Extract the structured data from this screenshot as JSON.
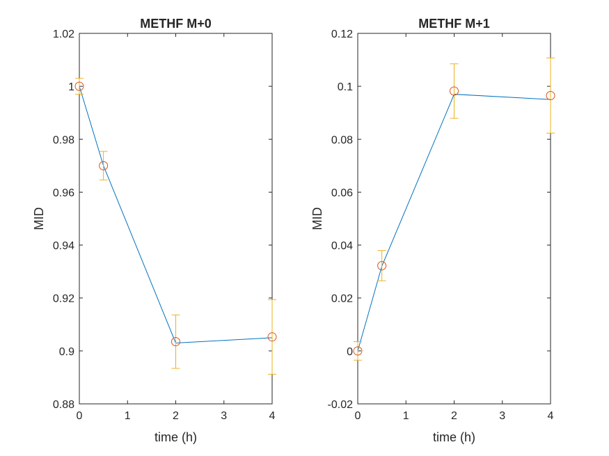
{
  "chart_data": [
    {
      "type": "line",
      "title": "METHF M+0",
      "xlabel": "time (h)",
      "ylabel": "MID",
      "xlim": [
        0,
        4
      ],
      "ylim": [
        0.88,
        1.02
      ],
      "xticks": [
        "0",
        "1",
        "2",
        "3",
        "4"
      ],
      "yticks": [
        "0.88",
        "0.9",
        "0.92",
        "0.94",
        "0.96",
        "0.98",
        "1",
        "1.02"
      ],
      "grid": false,
      "legend": "none",
      "fit_line": {
        "x": [
          0,
          0.5,
          2,
          4
        ],
        "y": [
          1.0,
          0.97,
          0.903,
          0.905
        ],
        "color": "#0072BD"
      },
      "measured": {
        "x": [
          0,
          0.5,
          2,
          4
        ],
        "y": [
          1.0,
          0.97,
          0.9035,
          0.9053
        ],
        "err": [
          0.003,
          0.0054,
          0.0101,
          0.0141
        ],
        "marker_color": "#D95319",
        "errorbar_color": "#EDB120"
      }
    },
    {
      "type": "line",
      "title": "METHF M+1",
      "xlabel": "time (h)",
      "ylabel": "MID",
      "xlim": [
        0,
        4
      ],
      "ylim": [
        -0.02,
        0.12
      ],
      "xticks": [
        "0",
        "1",
        "2",
        "3",
        "4"
      ],
      "yticks": [
        "-0.02",
        "0",
        "0.02",
        "0.04",
        "0.06",
        "0.08",
        "0.1",
        "0.12"
      ],
      "grid": false,
      "legend": "none",
      "fit_line": {
        "x": [
          0,
          0.5,
          2,
          4
        ],
        "y": [
          0.0,
          0.032,
          0.097,
          0.095
        ],
        "color": "#0072BD"
      },
      "measured": {
        "x": [
          0,
          0.5,
          2,
          4
        ],
        "y": [
          0.0,
          0.0322,
          0.0982,
          0.0965
        ],
        "err": [
          0.0035,
          0.0057,
          0.0103,
          0.0142
        ],
        "marker_color": "#D95319",
        "errorbar_color": "#EDB120"
      }
    }
  ]
}
